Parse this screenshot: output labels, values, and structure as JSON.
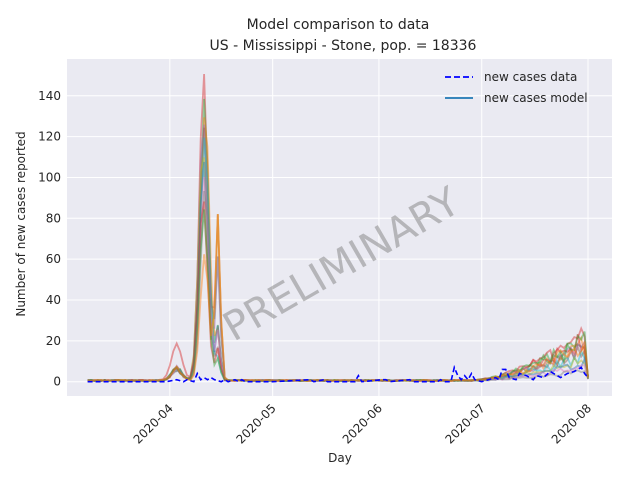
{
  "chart_data": {
    "type": "line",
    "title": "Model comparison to data",
    "subtitle": "US - Mississippi - Stone, pop. = 18336",
    "xlabel": "Day",
    "ylabel": "Number of new cases reported",
    "watermark": "PRELIMINARY",
    "xlim": [
      "2020-03-02",
      "2020-08-08"
    ],
    "ylim": [
      -7,
      158
    ],
    "x_ticks": [
      "2020-04",
      "2020-05",
      "2020-06",
      "2020-07",
      "2020-08"
    ],
    "y_ticks": [
      0,
      20,
      40,
      60,
      80,
      100,
      120,
      140
    ],
    "grid": true,
    "legend_position": "top-right",
    "legend": [
      {
        "label": "new cases data",
        "style": "dashed",
        "color": "#0000ff"
      },
      {
        "label": "new cases model",
        "style": "solid",
        "color": "#1f77b4"
      }
    ],
    "data_series": {
      "name": "new cases data",
      "color": "#0000ff",
      "points": [
        [
          "2020-03-08",
          0
        ],
        [
          "2020-03-20",
          0
        ],
        [
          "2020-03-31",
          0
        ],
        [
          "2020-04-03",
          1
        ],
        [
          "2020-04-05",
          0
        ],
        [
          "2020-04-06",
          1
        ],
        [
          "2020-04-08",
          0
        ],
        [
          "2020-04-09",
          4
        ],
        [
          "2020-04-10",
          1
        ],
        [
          "2020-04-11",
          2
        ],
        [
          "2020-04-12",
          1
        ],
        [
          "2020-04-13",
          2
        ],
        [
          "2020-04-14",
          1
        ],
        [
          "2020-04-16",
          0
        ],
        [
          "2020-04-17",
          1
        ],
        [
          "2020-04-18",
          0
        ],
        [
          "2020-04-20",
          1
        ],
        [
          "2020-04-21",
          0
        ],
        [
          "2020-04-22",
          1
        ],
        [
          "2020-04-23",
          0
        ],
        [
          "2020-05-01",
          0
        ],
        [
          "2020-05-12",
          1
        ],
        [
          "2020-05-13",
          0
        ],
        [
          "2020-05-16",
          1
        ],
        [
          "2020-05-17",
          0
        ],
        [
          "2020-05-25",
          0
        ],
        [
          "2020-05-26",
          3
        ],
        [
          "2020-05-27",
          0
        ],
        [
          "2020-06-02",
          1
        ],
        [
          "2020-06-03",
          1
        ],
        [
          "2020-06-04",
          0
        ],
        [
          "2020-06-10",
          1
        ],
        [
          "2020-06-11",
          0
        ],
        [
          "2020-06-18",
          0
        ],
        [
          "2020-06-19",
          1
        ],
        [
          "2020-06-20",
          0
        ],
        [
          "2020-06-22",
          0
        ],
        [
          "2020-06-23",
          7
        ],
        [
          "2020-06-24",
          3
        ],
        [
          "2020-06-25",
          1
        ],
        [
          "2020-06-26",
          3
        ],
        [
          "2020-06-27",
          1
        ],
        [
          "2020-06-28",
          4
        ],
        [
          "2020-06-29",
          1
        ],
        [
          "2020-07-01",
          0
        ],
        [
          "2020-07-03",
          1
        ],
        [
          "2020-07-05",
          2
        ],
        [
          "2020-07-06",
          1
        ],
        [
          "2020-07-07",
          6
        ],
        [
          "2020-07-08",
          6
        ],
        [
          "2020-07-09",
          2
        ],
        [
          "2020-07-11",
          1
        ],
        [
          "2020-07-12",
          4
        ],
        [
          "2020-07-14",
          3
        ],
        [
          "2020-07-16",
          1
        ],
        [
          "2020-07-17",
          3
        ],
        [
          "2020-07-19",
          2
        ],
        [
          "2020-07-21",
          5
        ],
        [
          "2020-07-23",
          3
        ],
        [
          "2020-07-24",
          2
        ],
        [
          "2020-07-26",
          4
        ],
        [
          "2020-07-28",
          5
        ],
        [
          "2020-07-30",
          7
        ],
        [
          "2020-07-31",
          4
        ],
        [
          "2020-08-01",
          2
        ]
      ]
    },
    "model_ensemble": {
      "name": "new cases model",
      "peak_date": "2020-04-11",
      "peak_values": [
        151,
        138,
        133,
        128,
        124,
        120,
        115,
        108,
        100,
        95,
        90,
        84,
        62
      ],
      "secondary_peak_date": "2020-04-15",
      "secondary_peak_values": [
        81,
        75,
        68,
        60,
        45,
        30
      ],
      "early_bump_date": "2020-04-03",
      "early_bump_max": 18,
      "late_rise_end_values": [
        22,
        20,
        18,
        17,
        15,
        13,
        11,
        9,
        7,
        5
      ]
    },
    "colors": [
      "#d62728",
      "#2ca02c",
      "#ff7f0e",
      "#9467bd",
      "#8c564b",
      "#17becf",
      "#bcbd22",
      "#1f77b4",
      "#e377c2",
      "#7f7f7f"
    ],
    "plot_background": "#eaeaf2"
  }
}
